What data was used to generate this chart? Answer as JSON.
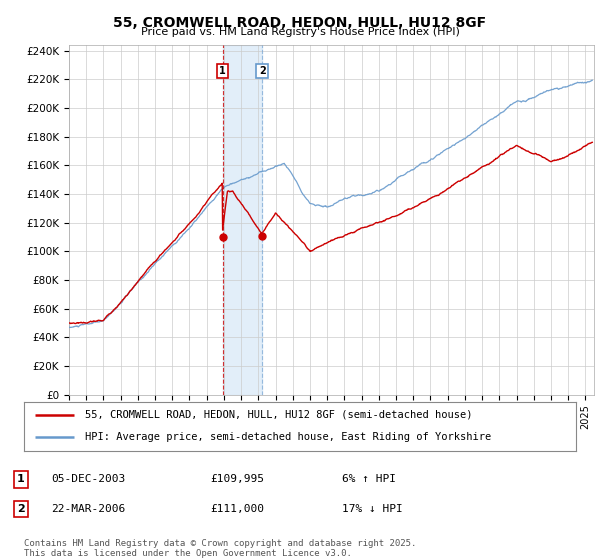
{
  "title": "55, CROMWELL ROAD, HEDON, HULL, HU12 8GF",
  "subtitle": "Price paid vs. HM Land Registry's House Price Index (HPI)",
  "ylim": [
    0,
    244000
  ],
  "xlim_start": 1995.0,
  "xlim_end": 2025.5,
  "legend_line1": "55, CROMWELL ROAD, HEDON, HULL, HU12 8GF (semi-detached house)",
  "legend_line2": "HPI: Average price, semi-detached house, East Riding of Yorkshire",
  "transaction1_date": "05-DEC-2003",
  "transaction1_price": "£109,995",
  "transaction1_hpi": "6% ↑ HPI",
  "transaction2_date": "22-MAR-2006",
  "transaction2_price": "£111,000",
  "transaction2_hpi": "17% ↓ HPI",
  "copyright_text": "Contains HM Land Registry data © Crown copyright and database right 2025.\nThis data is licensed under the Open Government Licence v3.0.",
  "red_color": "#cc0000",
  "blue_color": "#6699cc",
  "transaction1_x": 2003.92,
  "transaction2_x": 2006.22,
  "background_color": "#ffffff",
  "grid_color": "#cccccc",
  "shade_color": "#d0e4f5"
}
